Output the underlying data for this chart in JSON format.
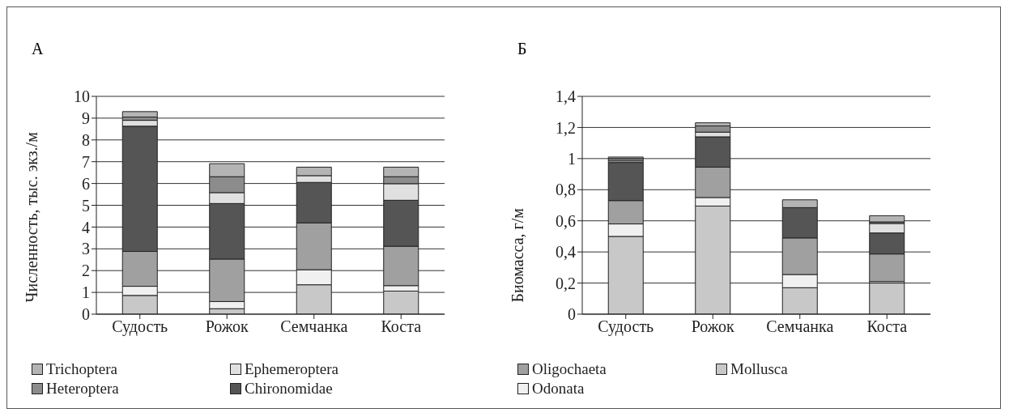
{
  "chart_data": [
    {
      "type": "bar",
      "title": "А",
      "ylabel": "Численность, тыс. экз./м",
      "categories": [
        "Судость",
        "Рожок",
        "Семчанка",
        "Коста"
      ],
      "stacked": true,
      "ylim": [
        0,
        10
      ],
      "yticks": [
        0,
        1,
        2,
        3,
        4,
        5,
        6,
        7,
        8,
        9,
        10
      ],
      "grid": "y",
      "legend": "bottom",
      "series": [
        {
          "color": "#c8c8c8",
          "values": [
            0.86,
            0.25,
            1.35,
            1.06
          ]
        },
        {
          "color": "#f0f0f0",
          "values": [
            0.42,
            0.33,
            0.69,
            0.25
          ]
        },
        {
          "color": "#a0a0a0",
          "values": [
            1.6,
            1.95,
            2.15,
            1.81
          ]
        },
        {
          "name": "Chironomidae",
          "color": "#555555",
          "values": [
            5.75,
            2.55,
            1.86,
            2.11
          ]
        },
        {
          "name": "Ephemeroptera",
          "color": "#e0e0e0",
          "values": [
            0.27,
            0.5,
            0.31,
            0.76
          ]
        },
        {
          "name": "Heteroptera",
          "color": "#8c8c8c",
          "values": [
            0.15,
            0.73,
            0,
            0.32
          ]
        },
        {
          "name": "Trichoptera",
          "color": "#b4b4b4",
          "values": [
            0.25,
            0.6,
            0.39,
            0.44
          ]
        }
      ]
    },
    {
      "type": "bar",
      "title": "Б",
      "ylabel": "Биомасса, г/м",
      "categories": [
        "Судость",
        "Рожок",
        "Семчанка",
        "Коста"
      ],
      "stacked": true,
      "ylim": [
        0,
        1.4
      ],
      "yticks": [
        0,
        {
          "value": 0.2,
          "label": "0,2"
        },
        {
          "value": 0.4,
          "label": "0,4"
        },
        {
          "value": 0.6,
          "label": "0,6"
        },
        {
          "value": 0.8,
          "label": "0,8"
        },
        1,
        {
          "value": 1.2,
          "label": "1,2"
        },
        {
          "value": 1.4,
          "label": "1,4"
        }
      ],
      "grid": "y",
      "legend": "bottom",
      "series": [
        {
          "name": "Mollusca",
          "color": "#c8c8c8",
          "values": [
            0.5,
            0.695,
            0.17,
            0.2
          ]
        },
        {
          "name": "Odonata",
          "color": "#f0f0f0",
          "values": [
            0.08,
            0.055,
            0.085,
            0.01
          ]
        },
        {
          "name": "Oligochaeta",
          "color": "#a0a0a0",
          "values": [
            0.15,
            0.195,
            0.235,
            0.177
          ]
        },
        {
          "color": "#555555",
          "values": [
            0.245,
            0.195,
            0.195,
            0.135
          ]
        },
        {
          "color": "#e0e0e0",
          "values": [
            0.01,
            0.03,
            0,
            0.061
          ]
        },
        {
          "color": "#8c8c8c",
          "values": [
            0.015,
            0.04,
            0,
            0.01
          ]
        },
        {
          "color": "#b4b4b4",
          "values": [
            0.01,
            0.02,
            0.05,
            0.04
          ]
        }
      ]
    }
  ]
}
